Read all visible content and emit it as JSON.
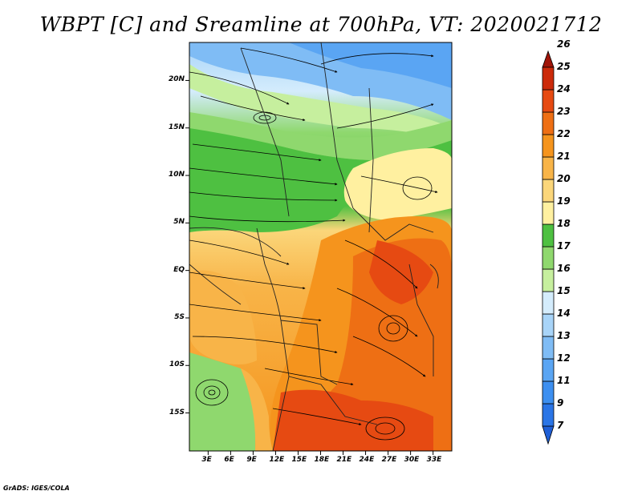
{
  "title": "WBPT [C] and Sreamline at 700hPa, VT: 2020021712",
  "footer": "GrADS: IGES/COLA",
  "map": {
    "lat_labels": [
      "20N",
      "15N",
      "10N",
      "5N",
      "EQ",
      "5S",
      "10S",
      "15S"
    ],
    "lon_labels": [
      "3E",
      "6E",
      "9E",
      "12E",
      "15E",
      "18E",
      "21E",
      "24E",
      "27E",
      "30E",
      "33E"
    ],
    "lat_range": [
      -19,
      24
    ],
    "lon_range": [
      0.5,
      35.5
    ]
  },
  "colorbar": {
    "levels": [
      "7",
      "9",
      "11",
      "12",
      "13",
      "14",
      "15",
      "16",
      "17",
      "18",
      "19",
      "20",
      "21",
      "22",
      "23",
      "24",
      "25",
      "26"
    ],
    "colors": [
      "#1f5fd6",
      "#2a75e6",
      "#3d8ff0",
      "#5aa5f3",
      "#7fbcf5",
      "#a8d4f8",
      "#d4ecfc",
      "#c6ef9e",
      "#8fd86e",
      "#4ec041",
      "#fff0a0",
      "#fbd67a",
      "#f8b448",
      "#f5941d",
      "#ee6f14",
      "#e64a12",
      "#cc2a0a",
      "#a01408"
    ]
  }
}
